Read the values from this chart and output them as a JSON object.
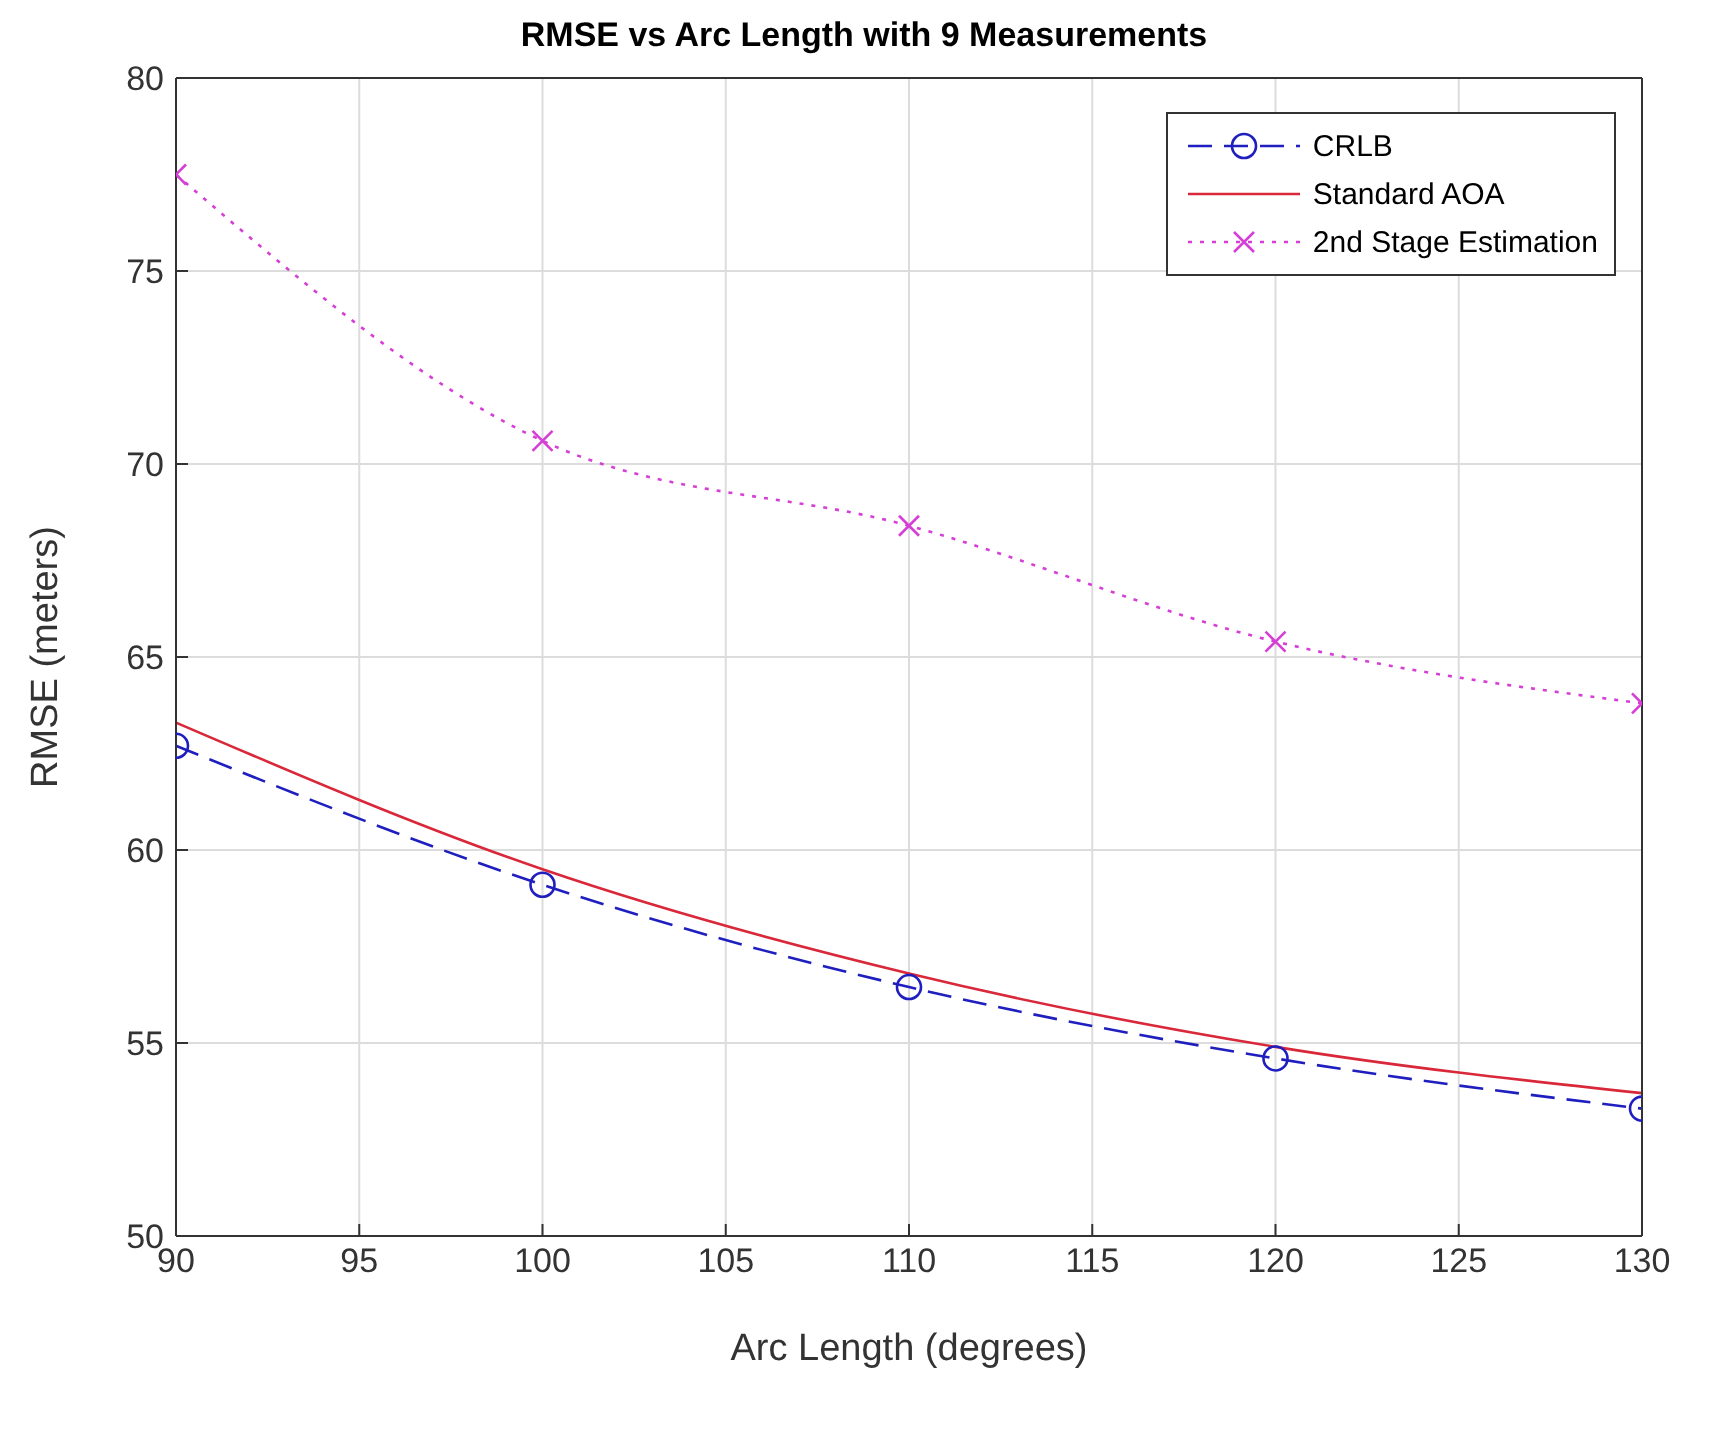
{
  "chart_data": {
    "type": "line",
    "title": "RMSE vs Arc Length with 9 Measurements",
    "xlabel": "Arc Length (degrees)",
    "ylabel": "RMSE (meters)",
    "x": [
      90,
      100,
      110,
      120,
      130
    ],
    "series": [
      {
        "name": "CRLB",
        "color": "#1f1fbf",
        "values": [
          62.7,
          59.1,
          56.45,
          54.6,
          53.3
        ],
        "marker": "circle",
        "line_style": "dashed"
      },
      {
        "name": "Standard AOA",
        "color": "#d9283a",
        "values": [
          63.3,
          59.5,
          56.8,
          54.9,
          53.7
        ],
        "marker": "none",
        "line_style": "solid"
      },
      {
        "name": "2nd Stage Estimation",
        "color": "#d63fd6",
        "values": [
          77.5,
          70.6,
          68.4,
          65.4,
          63.8
        ],
        "marker": "cross",
        "line_style": "dotted"
      }
    ],
    "xlim": [
      90,
      130
    ],
    "xticks": [
      90,
      95,
      100,
      105,
      110,
      115,
      120,
      125,
      130
    ],
    "ylim": [
      50,
      80
    ],
    "yticks": [
      50,
      55,
      60,
      65,
      70,
      75,
      80
    ],
    "grid": true,
    "legend": "top right"
  }
}
